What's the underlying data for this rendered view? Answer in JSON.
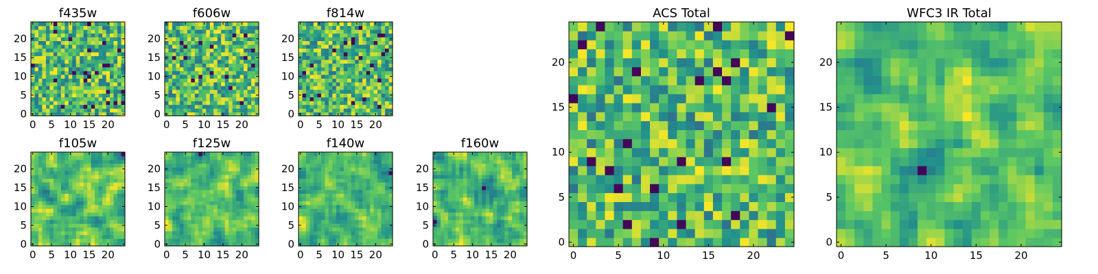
{
  "chart_data": [
    {
      "type": "heatmap",
      "title": "f435w",
      "x_ticks": [
        "0",
        "5",
        "10",
        "15",
        "20"
      ],
      "y_ticks": [
        "0",
        "5",
        "10",
        "15",
        "20"
      ],
      "xlim": [
        -0.5,
        24.5
      ],
      "ylim": [
        -0.5,
        24.5
      ],
      "grid": "off",
      "colormap": "viridis"
    },
    {
      "type": "heatmap",
      "title": "f606w",
      "x_ticks": [
        "0",
        "5",
        "10",
        "15",
        "20"
      ],
      "y_ticks": [
        "0",
        "5",
        "10",
        "15",
        "20"
      ],
      "xlim": [
        -0.5,
        24.5
      ],
      "ylim": [
        -0.5,
        24.5
      ],
      "grid": "off",
      "colormap": "viridis"
    },
    {
      "type": "heatmap",
      "title": "f814w",
      "x_ticks": [
        "0",
        "5",
        "10",
        "15",
        "20"
      ],
      "y_ticks": [
        "0",
        "5",
        "10",
        "15",
        "20"
      ],
      "xlim": [
        -0.5,
        24.5
      ],
      "ylim": [
        -0.5,
        24.5
      ],
      "grid": "off",
      "colormap": "viridis"
    },
    {
      "type": "heatmap",
      "title": "f105w",
      "x_ticks": [
        "0",
        "5",
        "10",
        "15",
        "20"
      ],
      "y_ticks": [
        "0",
        "5",
        "10",
        "15",
        "20"
      ],
      "xlim": [
        -0.5,
        24.5
      ],
      "ylim": [
        -0.5,
        24.5
      ],
      "grid": "off",
      "colormap": "viridis"
    },
    {
      "type": "heatmap",
      "title": "f125w",
      "x_ticks": [
        "0",
        "5",
        "10",
        "15",
        "20"
      ],
      "y_ticks": [
        "0",
        "5",
        "10",
        "15",
        "20"
      ],
      "xlim": [
        -0.5,
        24.5
      ],
      "ylim": [
        -0.5,
        24.5
      ],
      "grid": "off",
      "colormap": "viridis"
    },
    {
      "type": "heatmap",
      "title": "f140w",
      "x_ticks": [
        "0",
        "5",
        "10",
        "15",
        "20"
      ],
      "y_ticks": [
        "0",
        "5",
        "10",
        "15",
        "20"
      ],
      "xlim": [
        -0.5,
        24.5
      ],
      "ylim": [
        -0.5,
        24.5
      ],
      "grid": "off",
      "colormap": "viridis"
    },
    {
      "type": "heatmap",
      "title": "f160w",
      "x_ticks": [
        "0",
        "5",
        "10",
        "15",
        "20"
      ],
      "y_ticks": [
        "0",
        "5",
        "10",
        "15",
        "20"
      ],
      "xlim": [
        -0.5,
        24.5
      ],
      "ylim": [
        -0.5,
        24.5
      ],
      "grid": "off",
      "colormap": "viridis"
    },
    {
      "type": "heatmap",
      "title": "ACS Total",
      "x_ticks": [
        "0",
        "5",
        "10",
        "15",
        "20"
      ],
      "y_ticks": [
        "0",
        "5",
        "10",
        "15",
        "20"
      ],
      "xlim": [
        -0.5,
        24.5
      ],
      "ylim": [
        -0.5,
        24.5
      ],
      "grid": "off",
      "colormap": "viridis"
    },
    {
      "type": "heatmap",
      "title": "WFC3 IR Total",
      "x_ticks": [
        "0",
        "5",
        "10",
        "15",
        "20"
      ],
      "y_ticks": [
        "0",
        "5",
        "10",
        "15",
        "20"
      ],
      "xlim": [
        -0.5,
        24.5
      ],
      "ylim": [
        -0.5,
        24.5
      ],
      "grid": "off",
      "colormap": "viridis"
    }
  ],
  "colormap_stops": [
    "#440154",
    "#3b528b",
    "#21918c",
    "#5ec962",
    "#fde725"
  ],
  "axis_color": "#000000"
}
